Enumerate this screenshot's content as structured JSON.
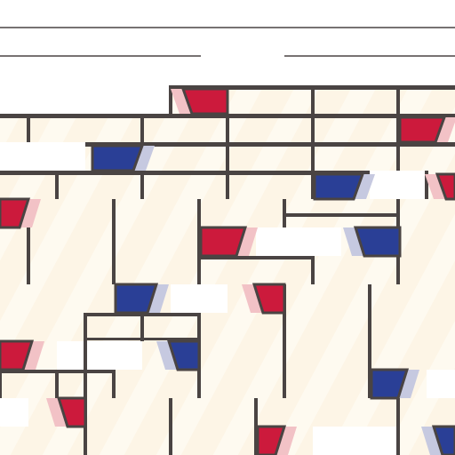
{
  "game": {
    "colors": {
      "background": "#ffffff",
      "cream_cell": "#fdf5e6",
      "cream_highlight": "#fffdf8",
      "frame": "#4a4443",
      "red": "#cc1a3c",
      "red_light": "#f2c2c6",
      "blue": "#2a3f96",
      "blue_light": "#c6c9e0",
      "frame_light": "#e8e2df"
    },
    "icons": [
      "red-slope-tile",
      "blue-slope-tile",
      "cream-brick-tile",
      "frame-bar"
    ]
  }
}
